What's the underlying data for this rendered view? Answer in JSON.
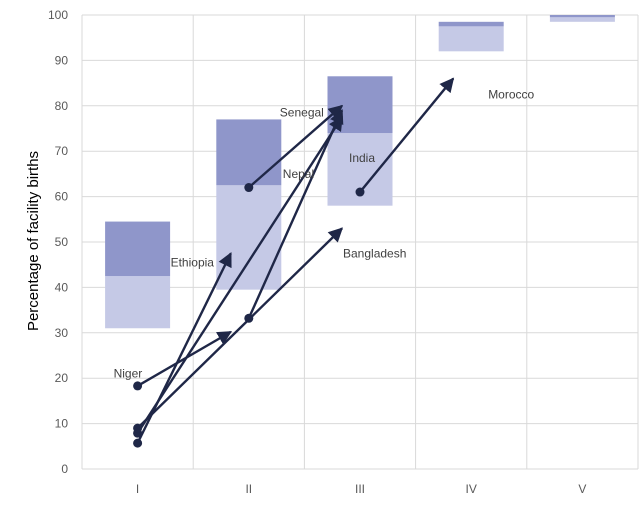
{
  "chart_data": {
    "type": "arrow-range",
    "ylabel": "Percentage of facility births",
    "xlabel": "",
    "title": "",
    "ylim": [
      0,
      100
    ],
    "yticks": [
      0,
      10,
      20,
      30,
      40,
      50,
      60,
      70,
      80,
      90,
      100
    ],
    "categories": [
      "I",
      "II",
      "III",
      "IV",
      "V"
    ],
    "grid": true,
    "ranges": [
      {
        "category": "I",
        "low": 31,
        "mid": 42.5,
        "high": 54.5
      },
      {
        "category": "II",
        "low": 39.5,
        "mid": 62.5,
        "high": 77
      },
      {
        "category": "III",
        "low": 58,
        "mid": 74,
        "high": 86.5
      },
      {
        "category": "IV",
        "low": 92,
        "mid": 97.5,
        "high": 98.5
      },
      {
        "category": "V",
        "low": 98.5,
        "mid": 99.5,
        "high": 100
      }
    ],
    "series": [
      {
        "name": "Niger",
        "from": {
          "category": "I",
          "value": 18.3
        },
        "to": {
          "category": "II",
          "value": 30.2
        }
      },
      {
        "name": "Ethiopia",
        "from": {
          "category": "I",
          "value": 5.7
        },
        "to": {
          "category": "II",
          "value": 47.5
        }
      },
      {
        "name": "Nepal",
        "from": {
          "category": "I",
          "value": 7.9
        },
        "to": {
          "category": "III",
          "value": 77.5
        }
      },
      {
        "name": "Bangladesh",
        "from": {
          "category": "I",
          "value": 9.0
        },
        "to": {
          "category": "III",
          "value": 53.0
        }
      },
      {
        "name": "Senegal",
        "from": {
          "category": "II",
          "value": 62.0
        },
        "to": {
          "category": "III",
          "value": 80.0
        }
      },
      {
        "name": "India",
        "from": {
          "category": "II",
          "value": 33.2
        },
        "to": {
          "category": "III",
          "value": 79.0
        }
      },
      {
        "name": "Morocco",
        "from": {
          "category": "III",
          "value": 61.0
        },
        "to": {
          "category": "IV",
          "value": 86.0
        }
      }
    ],
    "colors": {
      "range_low": "#c5c9e6",
      "range_high": "#8f96ca",
      "arrow": "#1f2747",
      "grid": "#d9d9d9",
      "text": "#595959"
    }
  }
}
